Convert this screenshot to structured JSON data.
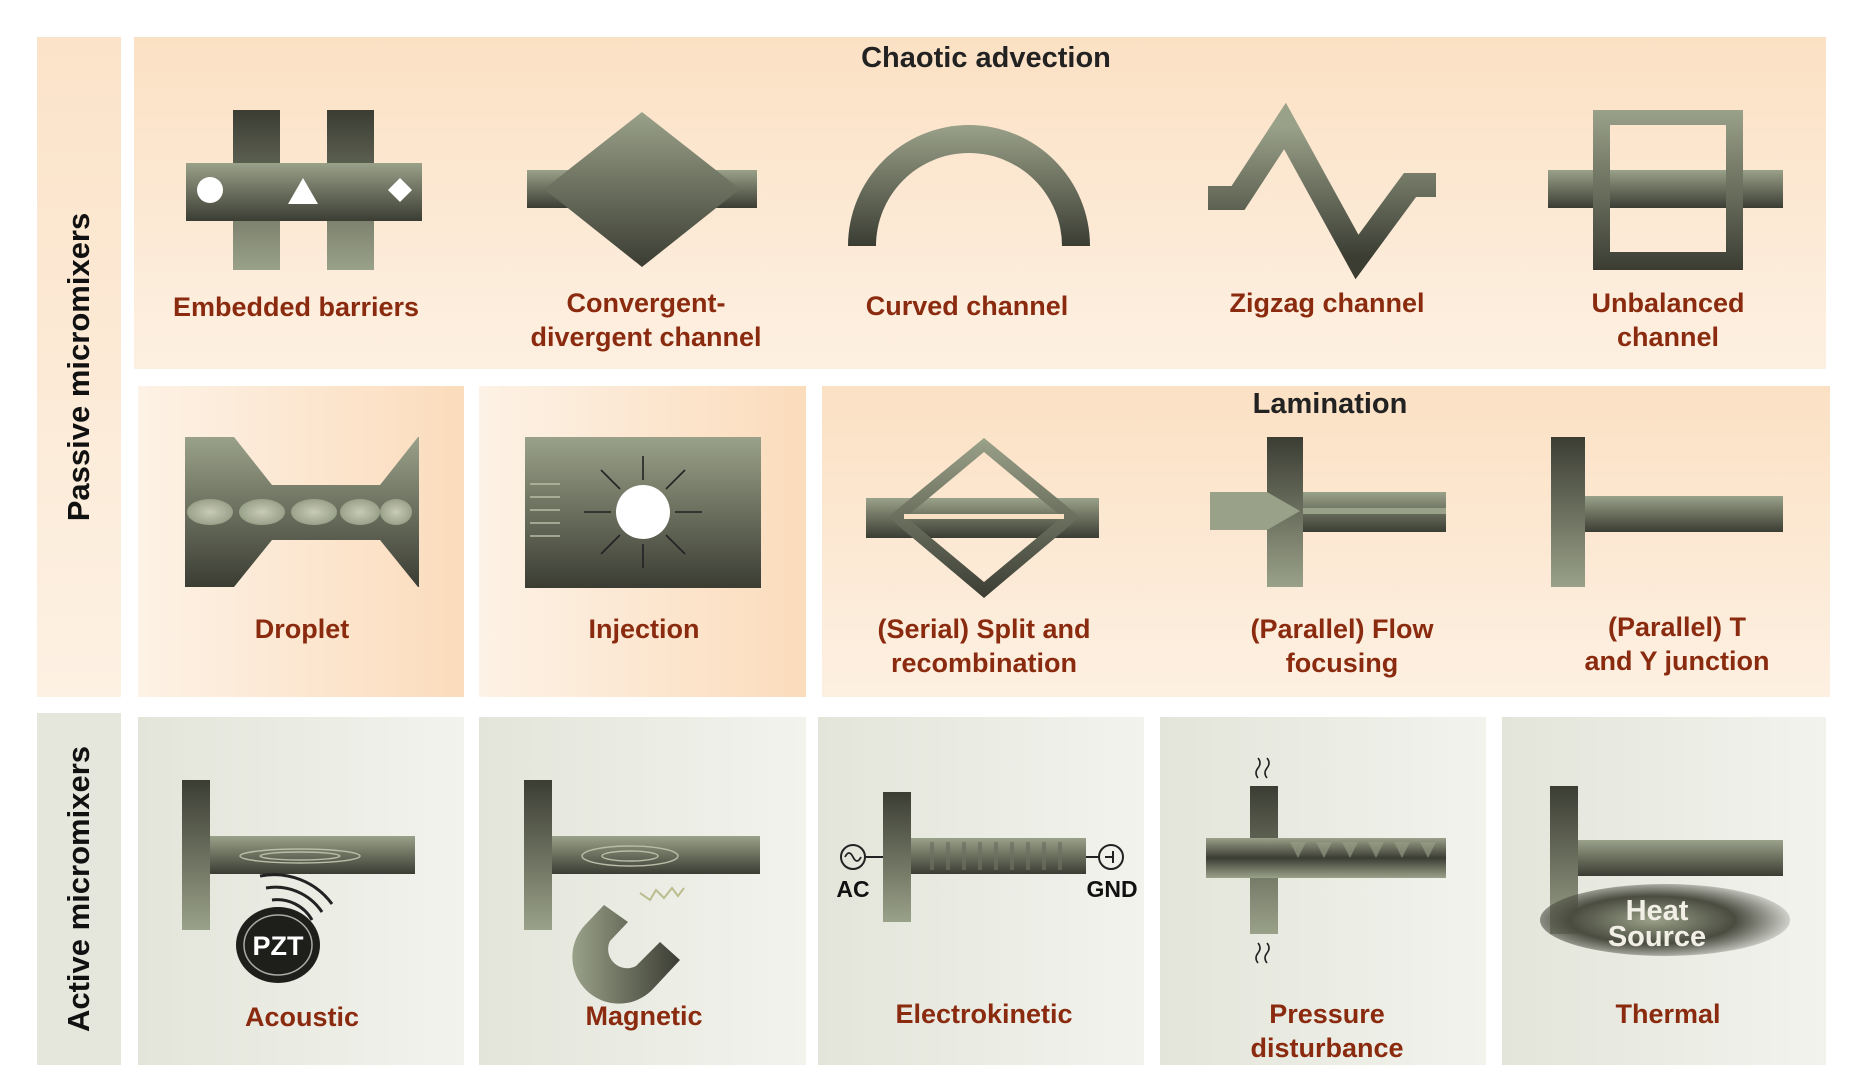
{
  "sections": {
    "passive": "Passive micromixers",
    "active": "Active micromixers"
  },
  "groups": {
    "chaotic": "Chaotic advection",
    "lamination": "Lamination"
  },
  "captions": {
    "embedded": [
      "Embedded barriers"
    ],
    "convergent": [
      "Convergent-",
      "divergent channel"
    ],
    "curved": [
      "Curved channel"
    ],
    "zigzag": [
      "Zigzag channel"
    ],
    "unbalanced": [
      "Unbalanced",
      "channel"
    ],
    "droplet": [
      "Droplet"
    ],
    "injection": [
      "Injection"
    ],
    "split": [
      "(Serial) Split and",
      "recombination"
    ],
    "flow": [
      "(Parallel) Flow",
      "focusing"
    ],
    "tjunction": [
      "(Parallel) T",
      "and Y junction"
    ],
    "acoustic": [
      "Acoustic"
    ],
    "magnetic": [
      "Magnetic"
    ],
    "electrokinetic": [
      "Electrokinetic"
    ],
    "pressure": [
      "Pressure",
      "disturbance"
    ],
    "thermal": [
      "Thermal"
    ]
  },
  "labels": {
    "pzt": "PZT",
    "ac": "AC",
    "gnd": "GND",
    "heat_line1": "Heat",
    "heat_line2": "Source"
  },
  "colors": {
    "channel_light": "#9aa189",
    "channel_dark": "#3b3d33",
    "caption": "#8a2a0e"
  }
}
